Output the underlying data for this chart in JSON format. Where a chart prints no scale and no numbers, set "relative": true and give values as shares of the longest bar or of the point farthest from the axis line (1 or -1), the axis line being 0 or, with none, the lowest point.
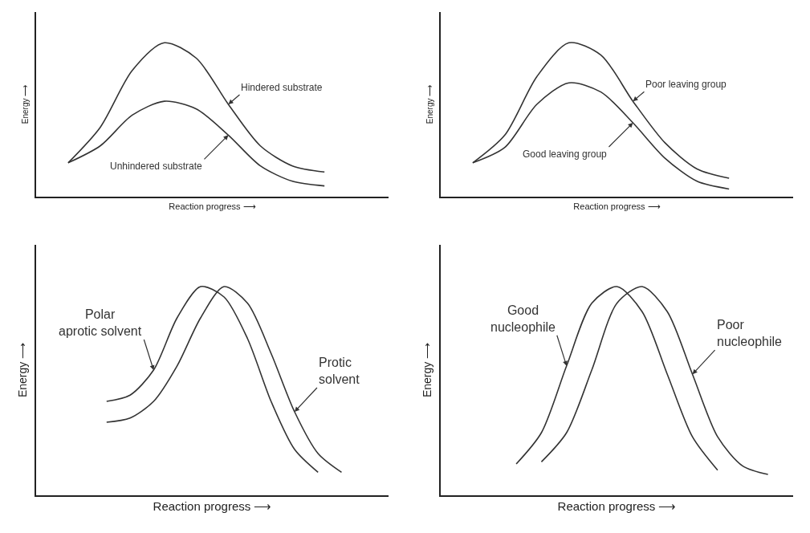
{
  "chart_data": [
    {
      "type": "line",
      "relative": true,
      "xlabel": "Reaction progress ⟶",
      "ylabel": "Energy ⟶",
      "categories": [
        null,
        null,
        null,
        null,
        null,
        null,
        null,
        null,
        null,
        null,
        null,
        null
      ],
      "series": [
        {
          "name": "Hindered substrate",
          "color": "#333333",
          "values": [
            null,
            0.22,
            0.45,
            0.82,
            1,
            0.9,
            0.6,
            0.33,
            0.2,
            0.16,
            null,
            null
          ]
        },
        {
          "name": "Unhindered substrate",
          "color": "#333333",
          "values": [
            null,
            0.22,
            0.33,
            0.53,
            0.62,
            0.57,
            0.4,
            0.2,
            0.1,
            0.07,
            null,
            null
          ]
        }
      ]
    },
    {
      "type": "line",
      "relative": true,
      "xlabel": "Reaction progress ⟶",
      "ylabel": "Energy ⟶",
      "categories": [
        null,
        null,
        null,
        null,
        null,
        null,
        null,
        null,
        null,
        null,
        null,
        null
      ],
      "series": [
        {
          "name": "Poor leaving group",
          "color": "#333333",
          "values": [
            null,
            0.22,
            0.4,
            0.78,
            1,
            0.92,
            0.62,
            0.35,
            0.18,
            0.12,
            null,
            null
          ]
        },
        {
          "name": "Good leaving group",
          "color": "#333333",
          "values": [
            null,
            0.22,
            0.32,
            0.6,
            0.74,
            0.68,
            0.48,
            0.25,
            0.1,
            0.05,
            null,
            null
          ]
        }
      ]
    },
    {
      "type": "line",
      "relative": true,
      "xlabel": "Reaction progress ⟶",
      "ylabel": "Energy ⟶",
      "categories": [
        null,
        null,
        null,
        null,
        null,
        null,
        null,
        null,
        null,
        null,
        null,
        null,
        null,
        null,
        null,
        null
      ],
      "series": [
        {
          "name": "Polar\naprotic solvent",
          "color": "#333333",
          "values": [
            null,
            null,
            null,
            0.45,
            0.48,
            0.6,
            0.85,
            1,
            0.95,
            0.75,
            0.45,
            0.22,
            0.11,
            null,
            null,
            null
          ]
        },
        {
          "name": "Protic\nsolvent",
          "color": "#333333",
          "values": [
            null,
            null,
            null,
            0.35,
            0.37,
            0.45,
            0.62,
            0.85,
            1,
            0.92,
            0.68,
            0.4,
            0.2,
            0.11,
            null,
            null
          ]
        }
      ]
    },
    {
      "type": "line",
      "relative": true,
      "xlabel": "Reaction progress ⟶",
      "ylabel": "Energy ⟶",
      "categories": [
        null,
        null,
        null,
        null,
        null,
        null,
        null,
        null,
        null,
        null,
        null,
        null,
        null,
        null,
        null
      ],
      "series": [
        {
          "name": "Good\nnucleophile",
          "color": "#333333",
          "values": [
            null,
            null,
            null,
            0.15,
            0.3,
            0.62,
            0.92,
            1,
            0.88,
            0.58,
            0.28,
            0.12,
            null,
            null,
            null
          ]
        },
        {
          "name": "Poor\nnucleophile",
          "color": "#333333",
          "values": [
            null,
            null,
            null,
            null,
            0.16,
            0.3,
            0.6,
            0.92,
            1,
            0.88,
            0.58,
            0.28,
            0.14,
            0.1,
            null
          ]
        }
      ]
    }
  ]
}
